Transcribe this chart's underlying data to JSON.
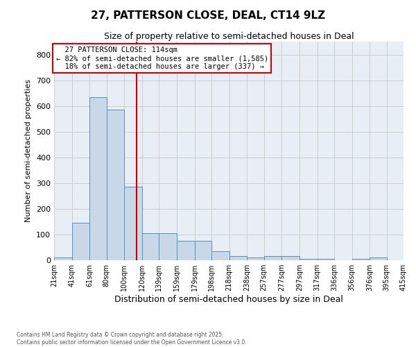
{
  "title": "27, PATTERSON CLOSE, DEAL, CT14 9LZ",
  "subtitle": "Size of property relative to semi-detached houses in Deal",
  "xlabel": "Distribution of semi-detached houses by size in Deal",
  "ylabel": "Number of semi-detached properties",
  "property_label": "27 PATTERSON CLOSE: 114sqm",
  "pct_smaller": 82,
  "n_smaller": 1585,
  "pct_larger": 18,
  "n_larger": 337,
  "bar_left_edges": [
    21,
    41,
    61,
    80,
    100,
    120,
    139,
    159,
    179,
    198,
    218,
    238,
    257,
    277,
    297,
    317,
    336,
    356,
    376,
    395
  ],
  "bar_heights": [
    10,
    145,
    635,
    585,
    285,
    105,
    105,
    75,
    75,
    35,
    15,
    10,
    15,
    15,
    5,
    5,
    0,
    5,
    10,
    0
  ],
  "bar_color": "#c8d8e8",
  "bar_edge_color": "#5b8db8",
  "vline_color": "#cc0000",
  "vline_x": 114,
  "annotation_box_color": "#cc0000",
  "grid_color": "#cccccc",
  "bg_color": "#e8eef5",
  "ylim": [
    0,
    850
  ],
  "yticks": [
    0,
    100,
    200,
    300,
    400,
    500,
    600,
    700,
    800
  ],
  "tick_labels": [
    "21sqm",
    "41sqm",
    "61sqm",
    "80sqm",
    "100sqm",
    "120sqm",
    "139sqm",
    "159sqm",
    "179sqm",
    "198sqm",
    "218sqm",
    "238sqm",
    "257sqm",
    "277sqm",
    "297sqm",
    "317sqm",
    "336sqm",
    "356sqm",
    "376sqm",
    "395sqm",
    "415sqm"
  ],
  "footer_line1": "Contains HM Land Registry data © Crown copyright and database right 2025.",
  "footer_line2": "Contains public sector information licensed under the Open Government Licence v3.0."
}
